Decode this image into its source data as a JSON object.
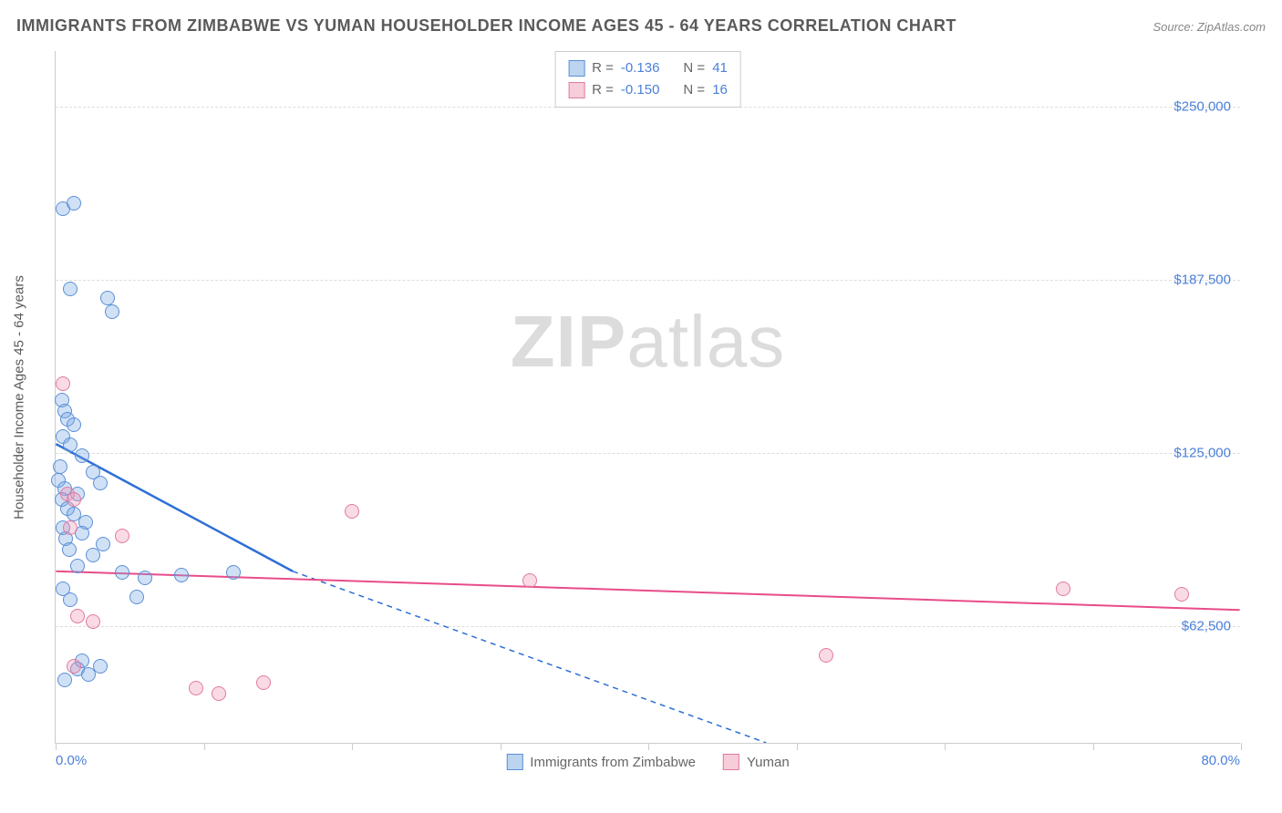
{
  "title": "IMMIGRANTS FROM ZIMBABWE VS YUMAN HOUSEHOLDER INCOME AGES 45 - 64 YEARS CORRELATION CHART",
  "source": "Source: ZipAtlas.com",
  "watermark_a": "ZIP",
  "watermark_b": "atlas",
  "chart": {
    "type": "scatter",
    "ylabel": "Householder Income Ages 45 - 64 years",
    "xlim": [
      0,
      80
    ],
    "ylim": [
      20000,
      270000
    ],
    "xticks_pct": [
      0,
      10,
      20,
      30,
      40,
      50,
      60,
      70,
      80
    ],
    "xlabel_min": "0.0%",
    "xlabel_max": "80.0%",
    "yticks": [
      {
        "v": 62500,
        "label": "$62,500"
      },
      {
        "v": 125000,
        "label": "$125,000"
      },
      {
        "v": 187500,
        "label": "$187,500"
      },
      {
        "v": 250000,
        "label": "$250,000"
      }
    ],
    "background_color": "#ffffff",
    "grid_color": "#dddddd",
    "axis_color": "#cccccc",
    "tick_label_color": "#4a7fd8"
  },
  "series": [
    {
      "name": "Immigrants from Zimbabwe",
      "color_fill": "rgba(120,170,230,0.35)",
      "color_stroke": "#5b8fd6",
      "swatch_fill": "#bcd4f0",
      "swatch_border": "#5b8fd6",
      "R": "-0.136",
      "N": "41",
      "trend": {
        "x1": 0,
        "y1": 128000,
        "x2": 16,
        "y2": 82000,
        "dash_x2": 48,
        "dash_y2": 20000,
        "color": "#2e6fd6",
        "width": 2.5
      },
      "points": [
        [
          0.5,
          213000
        ],
        [
          1.2,
          215000
        ],
        [
          1.0,
          184000
        ],
        [
          3.5,
          181000
        ],
        [
          3.8,
          176000
        ],
        [
          0.4,
          144000
        ],
        [
          0.6,
          140000
        ],
        [
          0.8,
          137000
        ],
        [
          1.2,
          135000
        ],
        [
          0.5,
          131000
        ],
        [
          1.0,
          128000
        ],
        [
          1.8,
          124000
        ],
        [
          0.3,
          120000
        ],
        [
          2.5,
          118000
        ],
        [
          0.2,
          115000
        ],
        [
          0.6,
          112000
        ],
        [
          1.5,
          110000
        ],
        [
          3.0,
          114000
        ],
        [
          0.4,
          108000
        ],
        [
          0.8,
          105000
        ],
        [
          1.2,
          103000
        ],
        [
          2.0,
          100000
        ],
        [
          0.5,
          98000
        ],
        [
          1.8,
          96000
        ],
        [
          0.7,
          94000
        ],
        [
          3.2,
          92000
        ],
        [
          0.9,
          90000
        ],
        [
          2.5,
          88000
        ],
        [
          1.5,
          84000
        ],
        [
          4.5,
          82000
        ],
        [
          6.0,
          80000
        ],
        [
          8.5,
          81000
        ],
        [
          12.0,
          82000
        ],
        [
          0.5,
          76000
        ],
        [
          5.5,
          73000
        ],
        [
          1.0,
          72000
        ],
        [
          1.5,
          47000
        ],
        [
          2.2,
          45000
        ],
        [
          0.6,
          43000
        ],
        [
          3.0,
          48000
        ],
        [
          1.8,
          50000
        ]
      ]
    },
    {
      "name": "Yuman",
      "color_fill": "rgba(240,150,180,0.35)",
      "color_stroke": "#e07ba0",
      "swatch_fill": "#f6cdd9",
      "swatch_border": "#e07ba0",
      "R": "-0.150",
      "N": "16",
      "trend": {
        "x1": 0,
        "y1": 82000,
        "x2": 80,
        "y2": 68000,
        "color": "#e84c89",
        "width": 2
      },
      "points": [
        [
          0.5,
          150000
        ],
        [
          0.8,
          110000
        ],
        [
          1.2,
          108000
        ],
        [
          1.0,
          98000
        ],
        [
          4.5,
          95000
        ],
        [
          20.0,
          104000
        ],
        [
          32.0,
          79000
        ],
        [
          68.0,
          76000
        ],
        [
          76.0,
          74000
        ],
        [
          52.0,
          52000
        ],
        [
          1.5,
          66000
        ],
        [
          2.5,
          64000
        ],
        [
          9.5,
          40000
        ],
        [
          11.0,
          38000
        ],
        [
          14.0,
          42000
        ],
        [
          1.2,
          48000
        ]
      ]
    }
  ],
  "stats_labels": {
    "R": "R =",
    "N": "N ="
  }
}
